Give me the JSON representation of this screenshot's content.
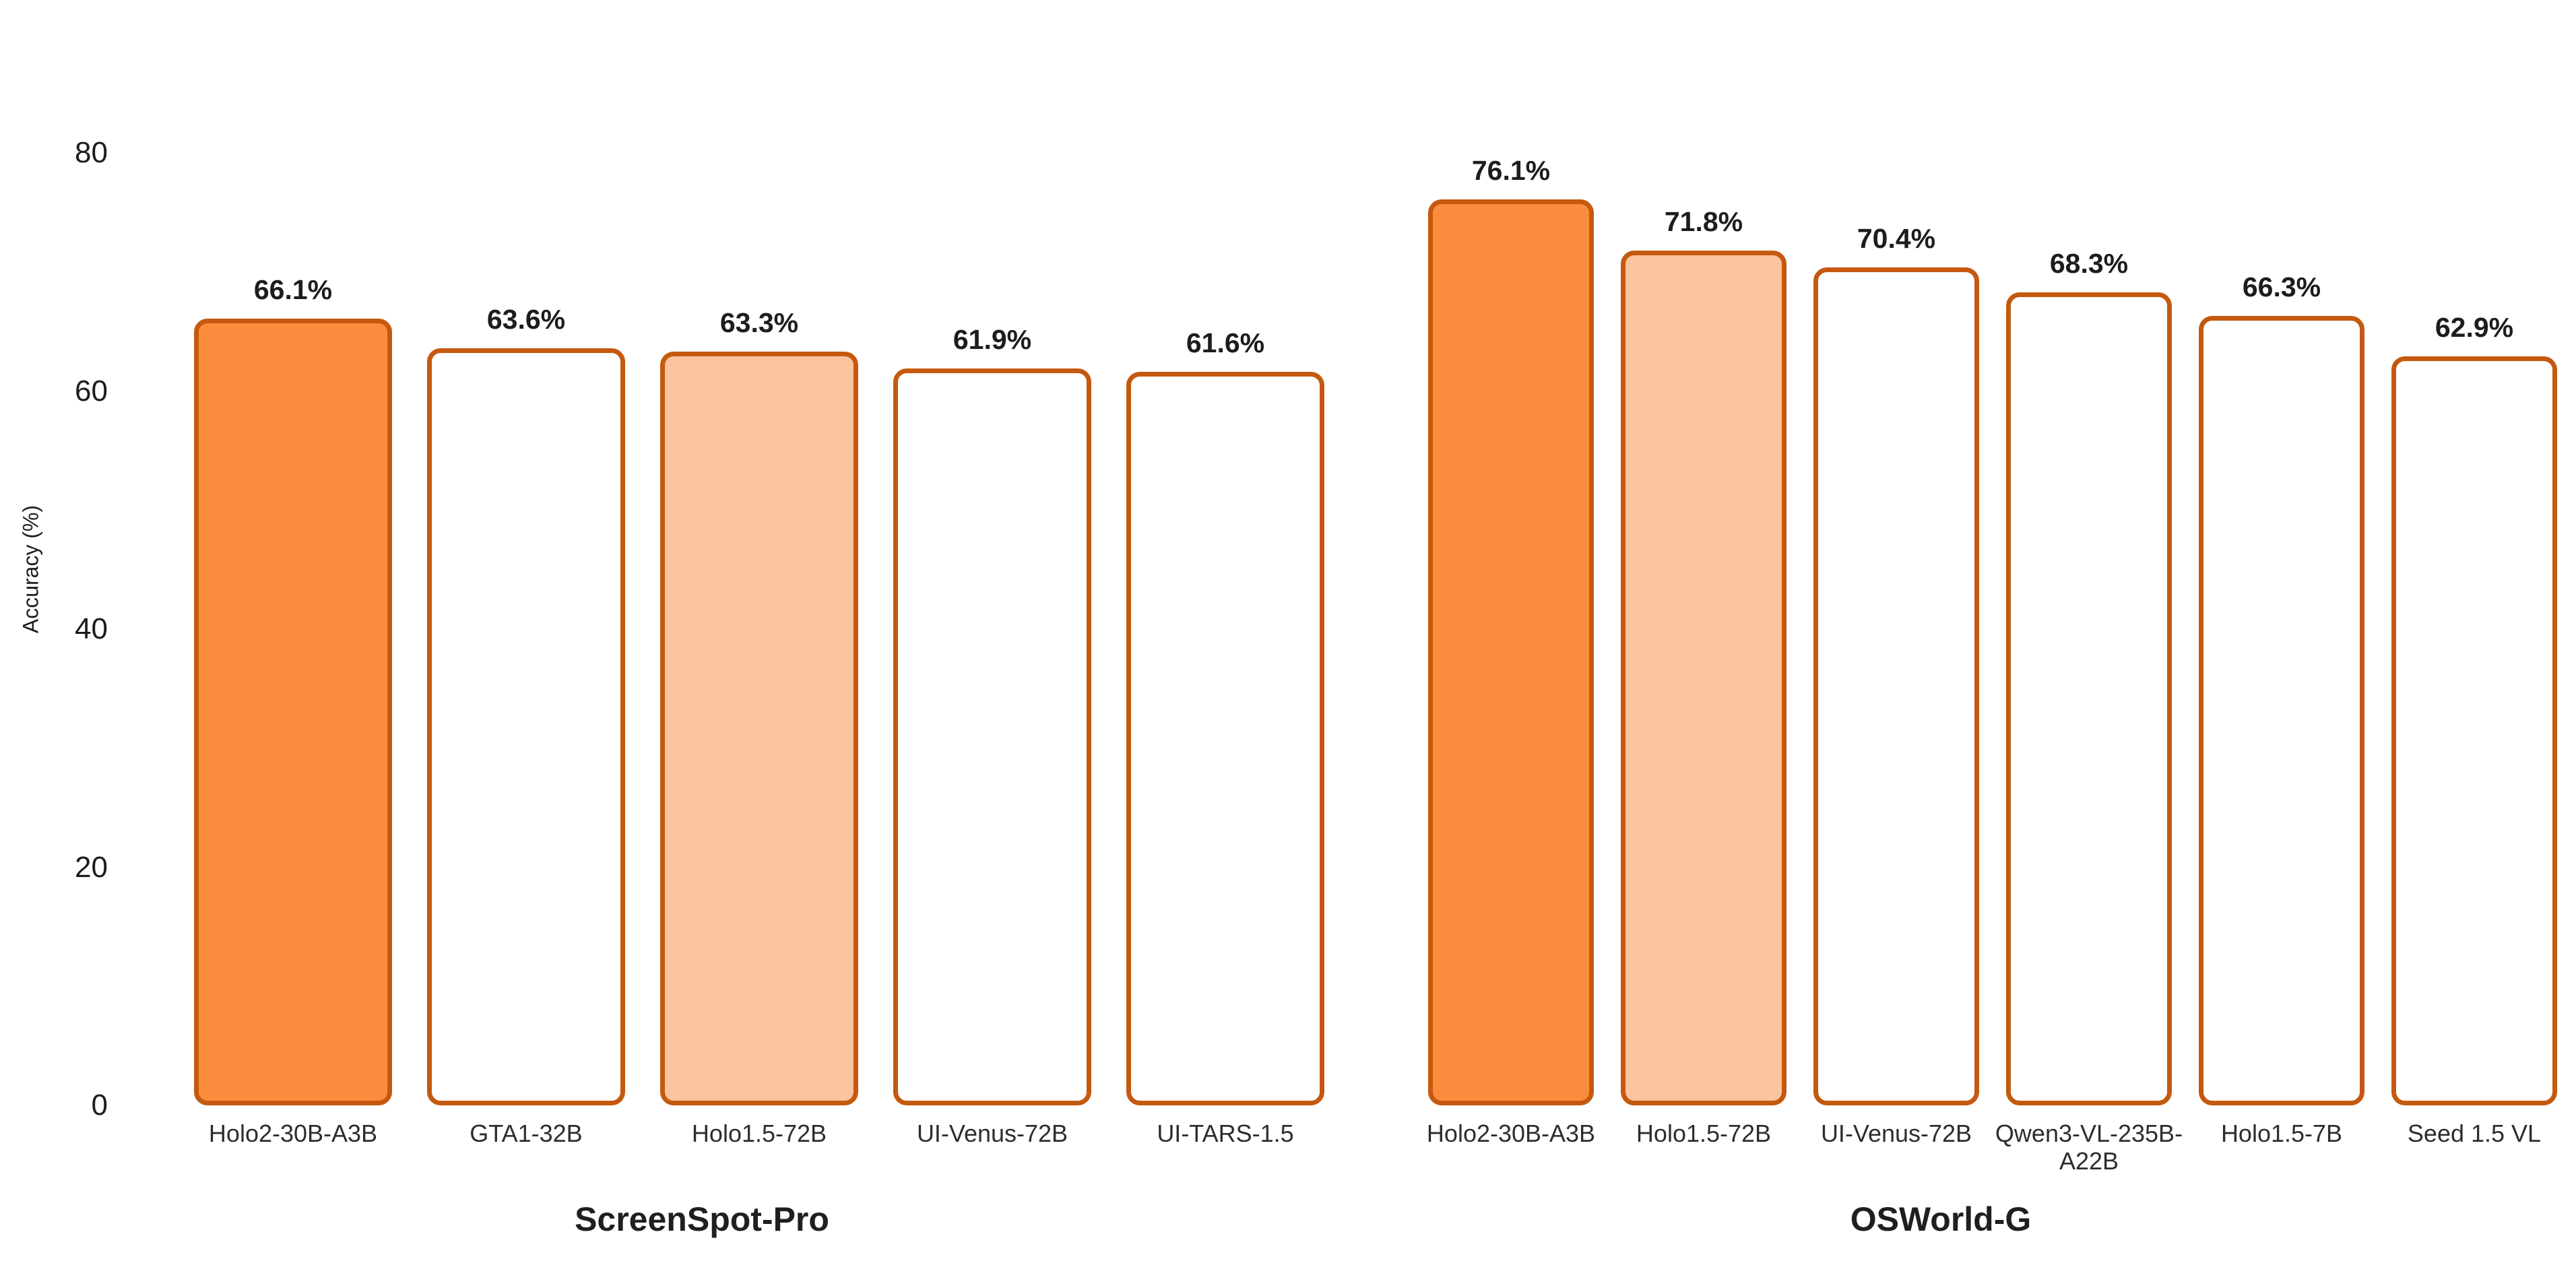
{
  "chart_data": {
    "type": "bar",
    "ylabel": "Accuracy (%)",
    "ylim": [
      0,
      80
    ],
    "yticks": [
      "0",
      "20",
      "40",
      "60",
      "80"
    ],
    "grid": false,
    "legend": "none",
    "colors": {
      "bar_fill_highlight": "#FB8C3E",
      "bar_fill_secondary": "#FAC49E",
      "bar_fill_plain": "#FFFFFF",
      "bar_border": "#C4590F",
      "text": "#1c1c1c"
    },
    "groups": [
      {
        "title": "ScreenSpot-Pro",
        "categories": [
          "Holo2-30B-A3B",
          "GTA1-32B",
          "Holo1.5-72B",
          "UI-Venus-72B",
          "UI-TARS-1.5"
        ],
        "bars": [
          {
            "label": "Holo2-30B-A3B",
            "value": 66.1,
            "display": "66.1%",
            "fill": "highlight"
          },
          {
            "label": "GTA1-32B",
            "value": 63.6,
            "display": "63.6%",
            "fill": "plain"
          },
          {
            "label": "Holo1.5-72B",
            "value": 63.3,
            "display": "63.3%",
            "fill": "secondary"
          },
          {
            "label": "UI-Venus-72B",
            "value": 61.9,
            "display": "61.9%",
            "fill": "plain"
          },
          {
            "label": "UI-TARS-1.5",
            "value": 61.6,
            "display": "61.6%",
            "fill": "plain"
          }
        ]
      },
      {
        "title": "OSWorld-G",
        "categories": [
          "Holo2-30B-A3B",
          "Holo1.5-72B",
          "UI-Venus-72B",
          "Qwen3-VL-235B-A22B",
          "Holo1.5-7B",
          "Seed 1.5 VL"
        ],
        "bars": [
          {
            "label": "Holo2-30B-A3B",
            "value": 76.1,
            "display": "76.1%",
            "fill": "highlight"
          },
          {
            "label": "Holo1.5-72B",
            "value": 71.8,
            "display": "71.8%",
            "fill": "secondary"
          },
          {
            "label": "UI-Venus-72B",
            "value": 70.4,
            "display": "70.4%",
            "fill": "plain"
          },
          {
            "label": "Qwen3-VL-235B-A22B",
            "value": 68.3,
            "display": "68.3%",
            "fill": "plain"
          },
          {
            "label": "Holo1.5-7B",
            "value": 66.3,
            "display": "66.3%",
            "fill": "plain"
          },
          {
            "label": "Seed 1.5 VL",
            "value": 62.9,
            "display": "62.9%",
            "fill": "plain"
          }
        ]
      }
    ]
  }
}
